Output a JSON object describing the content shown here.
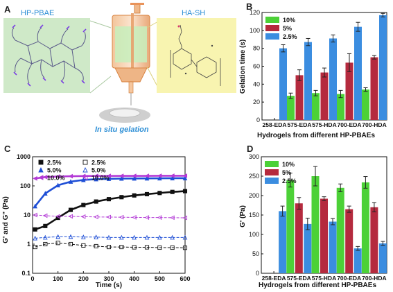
{
  "colors": {
    "green": "#4cd137",
    "red": "#b52a3e",
    "blue": "#3b8de0",
    "panel_a_green_bg": "#cfe9c8",
    "panel_a_yellow_bg": "#f8f4b0",
    "rheo_black": "#111111",
    "rheo_blue": "#1f4fd6",
    "rheo_magenta": "#b33bd6"
  },
  "panel_a": {
    "letter": "A",
    "left_label": "HP-PBAE",
    "right_label": "HA-SH",
    "bottom_label": "In situ gelation"
  },
  "chart_data": [
    {
      "panel": "B",
      "type": "bar",
      "categories": [
        "258-EDA",
        "575-EDA",
        "575-HDA",
        "700-EDA",
        "700-HDA"
      ],
      "series": [
        {
          "name": "10%",
          "color": "#4cd137",
          "values": [
            null,
            27,
            30,
            29,
            34
          ],
          "errors": [
            null,
            3,
            3,
            4,
            2
          ]
        },
        {
          "name": "5%",
          "color": "#b52a3e",
          "values": [
            null,
            50,
            53,
            64,
            70
          ],
          "errors": [
            null,
            6,
            5,
            10,
            2
          ]
        },
        {
          "name": "2.5%",
          "color": "#3b8de0",
          "values": [
            80,
            87,
            91,
            104,
            117
          ],
          "errors": [
            4,
            4,
            4,
            5,
            2
          ]
        }
      ],
      "title": "",
      "xlabel": "Hydrogels from different HP-PBAEs",
      "ylabel": "Gelation time (s)",
      "ylim": [
        0,
        120
      ],
      "yticks": [
        "0",
        "20",
        "40",
        "60",
        "80",
        "100",
        "120"
      ],
      "legend": "top-left"
    },
    {
      "panel": "C",
      "type": "scatter",
      "xlabel": "Time (s)",
      "ylabel": "G' and G\" (Pa)",
      "xlim": [
        0,
        600
      ],
      "ylim": [
        0.1,
        1000
      ],
      "yscale": "log",
      "xticks": [
        "0",
        "100",
        "200",
        "300",
        "400",
        "500",
        "600"
      ],
      "yticks": [
        "0.1",
        "1",
        "10",
        "100",
        "1000"
      ],
      "legend": "top-left",
      "series": [
        {
          "name": "2.5%",
          "marker": "filled-square",
          "color": "#111111",
          "x": [
            10,
            50,
            100,
            150,
            200,
            250,
            300,
            350,
            400,
            450,
            500,
            550,
            600
          ],
          "y": [
            3.2,
            4.2,
            8,
            15,
            22,
            29,
            35,
            41,
            47,
            52,
            57,
            62,
            66
          ]
        },
        {
          "name": "5.0%",
          "marker": "filled-triangle",
          "color": "#1f4fd6",
          "x": [
            10,
            50,
            100,
            150,
            200,
            250,
            300,
            350,
            400,
            450,
            500,
            550,
            600
          ],
          "y": [
            20,
            55,
            105,
            140,
            160,
            170,
            175,
            178,
            180,
            181,
            182,
            183,
            183
          ]
        },
        {
          "name": "10.0%",
          "marker": "filled-left-triangle",
          "color": "#b33bd6",
          "x": [
            10,
            50,
            100,
            150,
            200,
            250,
            300,
            350,
            400,
            450,
            500,
            550,
            600
          ],
          "y": [
            180,
            200,
            210,
            215,
            218,
            220,
            220,
            221,
            221,
            221,
            222,
            222,
            222
          ]
        },
        {
          "name": "2.5%",
          "marker": "open-square",
          "color": "#111111",
          "x": [
            10,
            50,
            100,
            150,
            200,
            250,
            300,
            350,
            400,
            450,
            500,
            550,
            600
          ],
          "y": [
            0.8,
            1.0,
            1.1,
            1.0,
            0.9,
            0.85,
            0.8,
            0.8,
            0.78,
            0.78,
            0.76,
            0.76,
            0.75
          ]
        },
        {
          "name": "5.0%",
          "marker": "open-triangle",
          "color": "#1f4fd6",
          "x": [
            10,
            50,
            100,
            150,
            200,
            250,
            300,
            350,
            400,
            450,
            500,
            550,
            600
          ],
          "y": [
            1.6,
            1.7,
            1.8,
            1.8,
            1.75,
            1.75,
            1.7,
            1.7,
            1.7,
            1.7,
            1.7,
            1.7,
            1.7
          ]
        },
        {
          "name": "10.0%",
          "marker": "open-left-triangle",
          "color": "#b33bd6",
          "x": [
            10,
            50,
            100,
            150,
            200,
            250,
            300,
            350,
            400,
            450,
            500,
            550,
            600
          ],
          "y": [
            10,
            9.5,
            9,
            9,
            8.8,
            8.6,
            8.5,
            8.4,
            8.3,
            8.2,
            8.2,
            8.1,
            8.0
          ]
        }
      ]
    },
    {
      "panel": "D",
      "type": "bar",
      "categories": [
        "258-EDA",
        "575-EDA",
        "575-HDA",
        "700-EDA",
        "700-HDA"
      ],
      "series": [
        {
          "name": "10%",
          "color": "#4cd137",
          "values": [
            null,
            240,
            250,
            220,
            234
          ],
          "errors": [
            null,
            18,
            25,
            10,
            15
          ]
        },
        {
          "name": "5%",
          "color": "#b52a3e",
          "values": [
            null,
            180,
            192,
            165,
            170
          ],
          "errors": [
            null,
            15,
            5,
            8,
            12
          ]
        },
        {
          "name": "2.5%",
          "color": "#3b8de0",
          "values": [
            160,
            127,
            133,
            64,
            77
          ],
          "errors": [
            13,
            15,
            8,
            5,
            5
          ]
        }
      ],
      "title": "",
      "xlabel": "Hydrogels from different HP-PBAEs",
      "ylabel": "G' (Pa)",
      "ylim": [
        0,
        300
      ],
      "yticks": [
        "0",
        "50",
        "100",
        "150",
        "200",
        "250",
        "300"
      ],
      "legend": "top-left"
    }
  ]
}
